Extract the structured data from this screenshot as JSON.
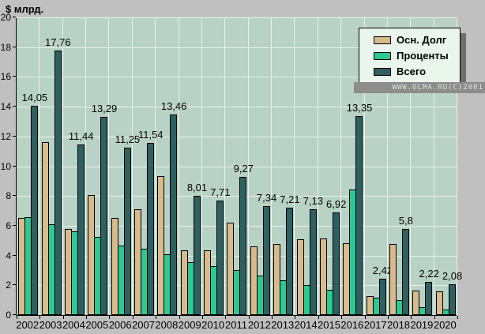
{
  "chart_data": {
    "type": "bar",
    "title": "",
    "y_axis_title": "$ млрд.",
    "xlabel": "",
    "ylabel": "$ млрд.",
    "ylim": [
      0,
      20
    ],
    "ytick_step": 2,
    "grid": true,
    "legend_position": "top-right",
    "categories": [
      "2002",
      "2003",
      "2004",
      "2005",
      "2006",
      "2007",
      "2008",
      "2009",
      "2010",
      "2011",
      "2012",
      "2013",
      "2014",
      "2015",
      "2016",
      "2017",
      "2018",
      "2019",
      "2020"
    ],
    "series": [
      {
        "name": "Осн. Долг",
        "color": "#d9ba8c",
        "values": [
          6.5,
          11.6,
          5.8,
          8.05,
          6.55,
          7.1,
          9.35,
          4.35,
          4.35,
          6.2,
          4.6,
          4.8,
          5.1,
          5.15,
          4.85,
          1.3,
          4.8,
          1.65,
          1.6
        ]
      },
      {
        "name": "Проценты",
        "color": "#2dc893",
        "values": [
          6.6,
          6.1,
          5.6,
          5.25,
          4.65,
          4.45,
          4.1,
          3.55,
          3.3,
          3.0,
          2.65,
          2.35,
          2.0,
          1.7,
          8.45,
          1.15,
          1.0,
          0.55,
          0.35
        ]
      },
      {
        "name": "Всего",
        "color": "#2f6061",
        "values": [
          14.05,
          17.76,
          11.44,
          13.29,
          11.25,
          11.54,
          13.46,
          8.01,
          7.71,
          9.27,
          7.34,
          7.21,
          7.13,
          6.92,
          13.35,
          2.42,
          5.8,
          2.22,
          2.08
        ],
        "labels": [
          "14,05",
          "17,76",
          "11,44",
          "13,29",
          "11,25",
          "11,54",
          "13,46",
          "8,01",
          "7,71",
          "9,27",
          "7,34",
          "7,21",
          "7,13",
          "6,92",
          "13,35",
          "2,42",
          "5,8",
          "2,22",
          "2,08"
        ]
      }
    ]
  },
  "watermark": {
    "text": "WWW.OLMA.RU(C)2001"
  },
  "colors": {
    "page_bg": "#c0c0c0",
    "plot_bg": "#b8d2c5",
    "gridline": "#e9f2eb",
    "legend_bg": "#eaf5ec",
    "legend_shadow": "#6e6e6e",
    "watermark_bg": "#8d8d8d",
    "watermark_text": "#d8e8d8"
  }
}
